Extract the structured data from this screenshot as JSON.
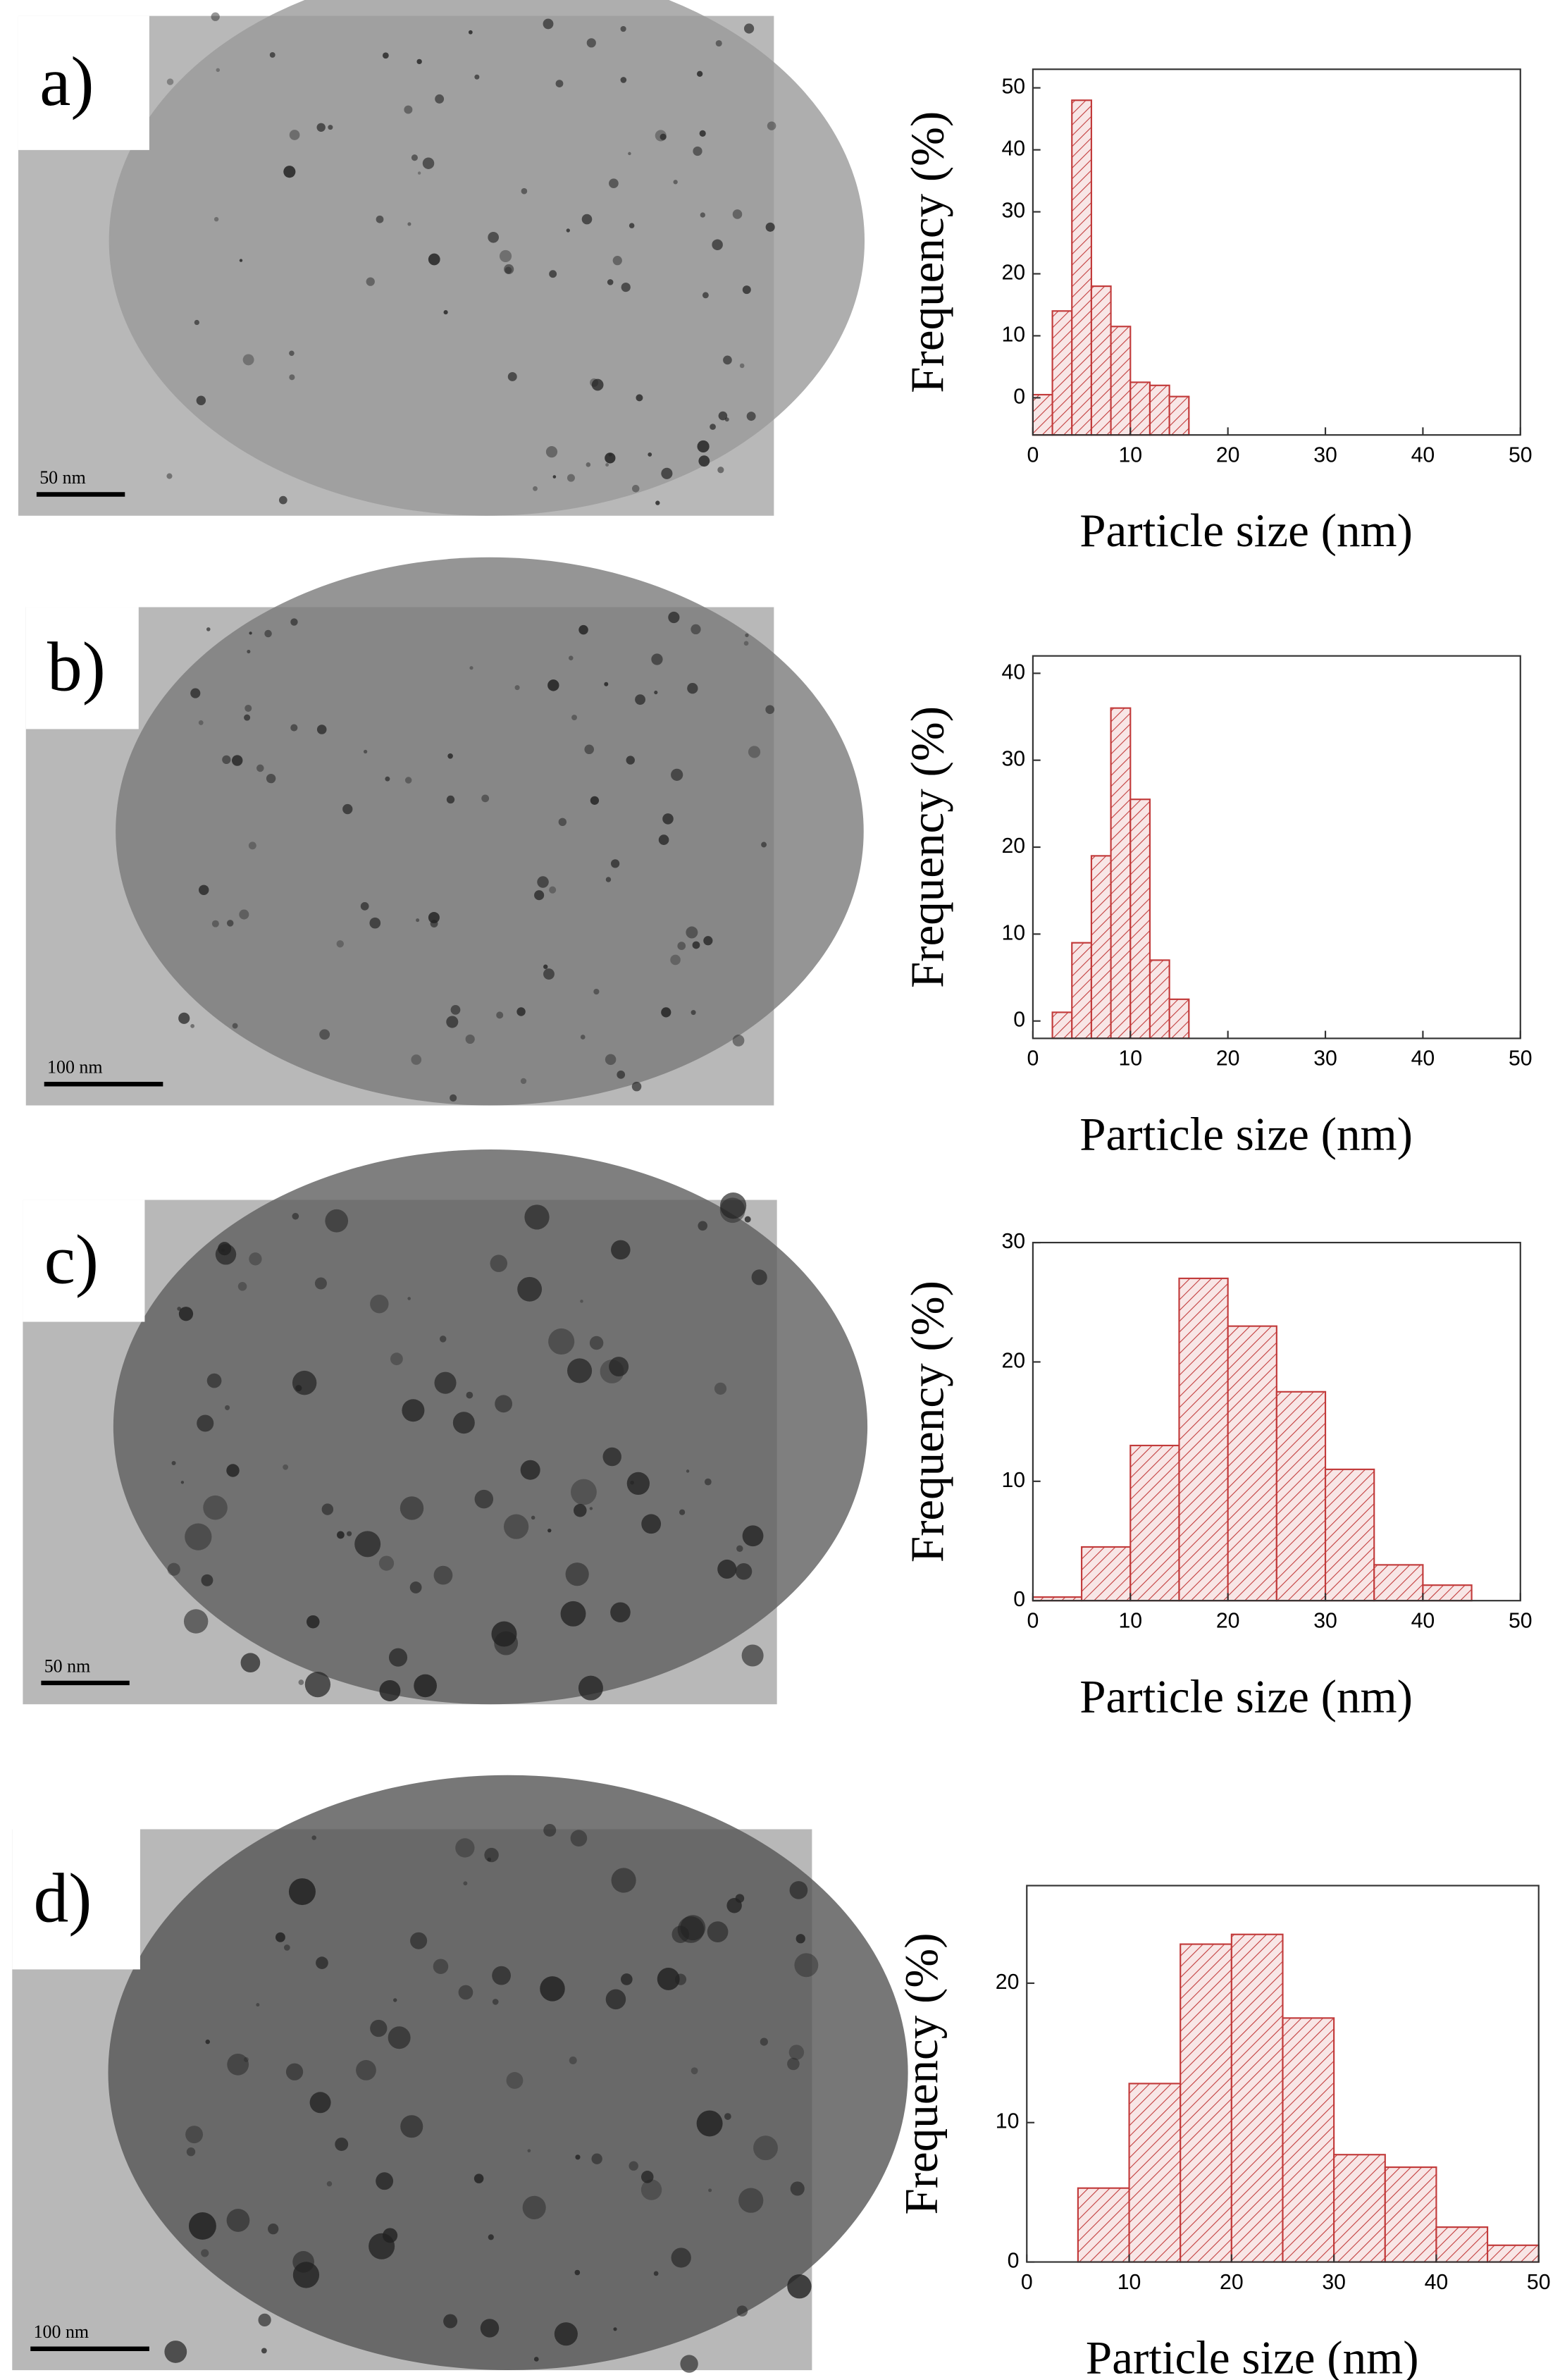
{
  "chart_data": [
    {
      "type": "histogram",
      "xlabel": "Particle size (nm)",
      "ylabel": "Frequency (%)",
      "color": "#c23b3b",
      "bins": [
        0,
        2,
        4,
        6,
        8,
        10,
        12,
        14,
        16
      ],
      "values": [
        0.5,
        14,
        48,
        18,
        11.5,
        2.5,
        2,
        0.2
      ],
      "xlim": [
        0,
        50
      ],
      "xticks": [
        0,
        10,
        20,
        30,
        40,
        50
      ],
      "ylim": [
        -6,
        53
      ],
      "yticks": [
        0,
        10,
        20,
        30,
        40,
        50
      ]
    },
    {
      "type": "histogram",
      "xlabel": "Particle size (nm)",
      "ylabel": "Frequency (%)",
      "color": "#c23b3b",
      "bins": [
        2,
        4,
        6,
        8,
        10,
        12,
        14,
        16
      ],
      "values": [
        1,
        9,
        19,
        36,
        25.5,
        7,
        2.5
      ],
      "xlim": [
        0,
        50
      ],
      "xticks": [
        0,
        10,
        20,
        30,
        40,
        50
      ],
      "ylim": [
        -2,
        42
      ],
      "yticks": [
        0,
        10,
        20,
        30,
        40
      ]
    },
    {
      "type": "histogram",
      "xlabel": "Particle size (nm)",
      "ylabel": "Frequency (%)",
      "color": "#c23b3b",
      "bins": [
        0,
        5,
        10,
        15,
        20,
        25,
        30,
        35,
        40,
        45
      ],
      "values": [
        0.3,
        4.5,
        13,
        27,
        23,
        17.5,
        11,
        3,
        1.3
      ],
      "xlim": [
        0,
        50
      ],
      "xticks": [
        0,
        10,
        20,
        30,
        40,
        50
      ],
      "ylim": [
        0,
        30
      ],
      "yticks": [
        0,
        10,
        20,
        30
      ]
    },
    {
      "type": "histogram",
      "xlabel": "Particle size (nm)",
      "ylabel": "Frequency (%)",
      "color": "#c23b3b",
      "bins": [
        5,
        10,
        15,
        20,
        25,
        30,
        35,
        40,
        45,
        50
      ],
      "values": [
        5.3,
        12.8,
        22.8,
        23.5,
        17.5,
        7.7,
        6.8,
        2.5,
        1.2
      ],
      "xlim": [
        0,
        50
      ],
      "xticks": [
        0,
        10,
        20,
        30,
        40,
        50
      ],
      "ylim": [
        0,
        27
      ],
      "yticks": [
        0,
        10,
        20
      ]
    }
  ],
  "panels": [
    {
      "label": "a)",
      "scale_bar": "50 nm"
    },
    {
      "label": "b)",
      "scale_bar": "100 nm"
    },
    {
      "label": "c)",
      "scale_bar": "50 nm"
    },
    {
      "label": "d)",
      "scale_bar": "100 nm"
    }
  ]
}
